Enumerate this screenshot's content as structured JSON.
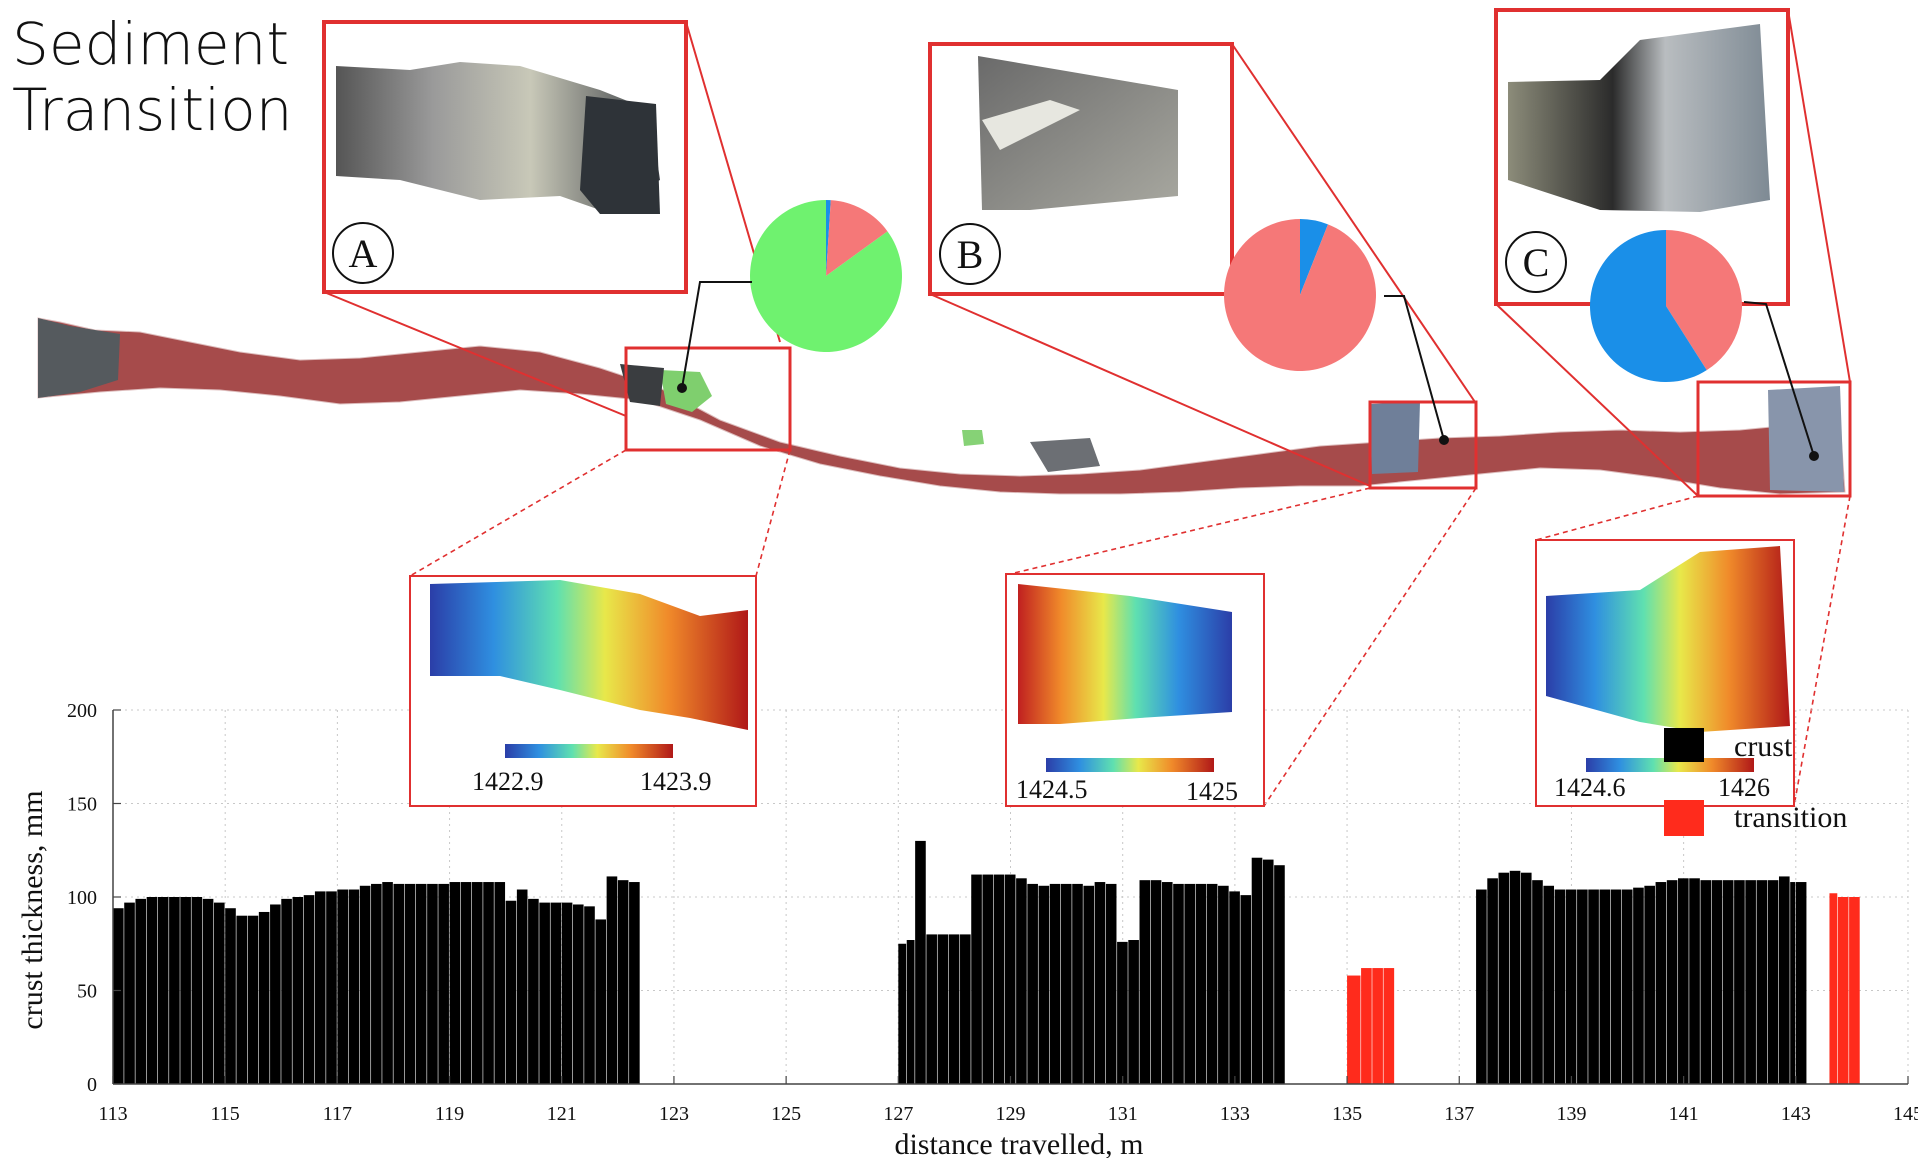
{
  "header": {
    "title_line1": "Sediment",
    "title_line2": "Transition"
  },
  "colors": {
    "crust": "#000000",
    "transition": "#ff2b1c",
    "callout": "#e03030",
    "pie_green": "#6ff26f",
    "pie_salmon": "#f57878",
    "pie_blue": "#1a8fe8",
    "track": "#a84e4e"
  },
  "insets": [
    {
      "letter": "A",
      "pie": [
        {
          "label": "green",
          "value": 85
        },
        {
          "label": "salmon",
          "value": 14
        },
        {
          "label": "blue",
          "value": 1
        }
      ]
    },
    {
      "letter": "B",
      "pie": [
        {
          "label": "salmon",
          "value": 94
        },
        {
          "label": "blue",
          "value": 6
        }
      ]
    },
    {
      "letter": "C",
      "pie": [
        {
          "label": "salmon",
          "value": 41
        },
        {
          "label": "blue",
          "value": 59
        }
      ]
    }
  ],
  "colorbars": [
    {
      "min_label": "1422.9",
      "max_label": "1423.9"
    },
    {
      "min_label": "1424.5",
      "max_label": "1425"
    },
    {
      "min_label": "1424.6",
      "max_label": "1426"
    }
  ],
  "chart_data": {
    "type": "bar",
    "xlabel": "distance travelled, m",
    "ylabel": "crust thickness, mm",
    "xlim": [
      113,
      145
    ],
    "ylim": [
      0,
      200
    ],
    "xticks": [
      113,
      115,
      117,
      119,
      121,
      123,
      125,
      127,
      129,
      131,
      133,
      135,
      137,
      139,
      141,
      143,
      145
    ],
    "yticks": [
      0,
      50,
      100,
      150,
      200
    ],
    "grid": true,
    "legend_position": "right",
    "series": [
      {
        "name": "crust",
        "points": [
          [
            113.0,
            94
          ],
          [
            113.2,
            97
          ],
          [
            113.4,
            99
          ],
          [
            113.6,
            100
          ],
          [
            113.8,
            100
          ],
          [
            114.0,
            100
          ],
          [
            114.2,
            100
          ],
          [
            114.4,
            100
          ],
          [
            114.6,
            99
          ],
          [
            114.8,
            97
          ],
          [
            115.0,
            94
          ],
          [
            115.2,
            90
          ],
          [
            115.4,
            90
          ],
          [
            115.6,
            92
          ],
          [
            115.8,
            96
          ],
          [
            116.0,
            99
          ],
          [
            116.2,
            100
          ],
          [
            116.4,
            101
          ],
          [
            116.6,
            103
          ],
          [
            116.8,
            103
          ],
          [
            117.0,
            104
          ],
          [
            117.2,
            104
          ],
          [
            117.4,
            106
          ],
          [
            117.6,
            107
          ],
          [
            117.8,
            108
          ],
          [
            118.0,
            107
          ],
          [
            118.2,
            107
          ],
          [
            118.4,
            107
          ],
          [
            118.6,
            107
          ],
          [
            118.8,
            107
          ],
          [
            119.0,
            108
          ],
          [
            119.2,
            108
          ],
          [
            119.4,
            108
          ],
          [
            119.6,
            108
          ],
          [
            119.8,
            108
          ],
          [
            120.0,
            98
          ],
          [
            120.2,
            104
          ],
          [
            120.4,
            99
          ],
          [
            120.6,
            97
          ],
          [
            120.8,
            97
          ],
          [
            121.0,
            97
          ],
          [
            121.2,
            96
          ],
          [
            121.4,
            95
          ],
          [
            121.6,
            88
          ],
          [
            121.8,
            111
          ],
          [
            122.0,
            109
          ],
          [
            122.2,
            108
          ],
          [
            127.0,
            75
          ],
          [
            127.15,
            77
          ],
          [
            127.3,
            130
          ],
          [
            127.5,
            80
          ],
          [
            127.7,
            80
          ],
          [
            127.9,
            80
          ],
          [
            128.1,
            80
          ],
          [
            128.3,
            112
          ],
          [
            128.5,
            112
          ],
          [
            128.7,
            112
          ],
          [
            128.9,
            112
          ],
          [
            129.1,
            110
          ],
          [
            129.3,
            107
          ],
          [
            129.5,
            106
          ],
          [
            129.7,
            107
          ],
          [
            129.9,
            107
          ],
          [
            130.1,
            107
          ],
          [
            130.3,
            106
          ],
          [
            130.5,
            108
          ],
          [
            130.7,
            107
          ],
          [
            130.9,
            76
          ],
          [
            131.1,
            77
          ],
          [
            131.3,
            109
          ],
          [
            131.5,
            109
          ],
          [
            131.7,
            108
          ],
          [
            131.9,
            107
          ],
          [
            132.1,
            107
          ],
          [
            132.3,
            107
          ],
          [
            132.5,
            107
          ],
          [
            132.7,
            106
          ],
          [
            132.9,
            103
          ],
          [
            133.1,
            101
          ],
          [
            133.3,
            121
          ],
          [
            133.5,
            120
          ],
          [
            133.7,
            117
          ],
          [
            137.3,
            104
          ],
          [
            137.5,
            110
          ],
          [
            137.7,
            113
          ],
          [
            137.9,
            114
          ],
          [
            138.1,
            113
          ],
          [
            138.3,
            109
          ],
          [
            138.5,
            106
          ],
          [
            138.7,
            104
          ],
          [
            138.9,
            104
          ],
          [
            139.1,
            104
          ],
          [
            139.3,
            104
          ],
          [
            139.5,
            104
          ],
          [
            139.7,
            104
          ],
          [
            139.9,
            104
          ],
          [
            140.1,
            105
          ],
          [
            140.3,
            106
          ],
          [
            140.5,
            108
          ],
          [
            140.7,
            109
          ],
          [
            140.9,
            110
          ],
          [
            141.1,
            110
          ],
          [
            141.3,
            109
          ],
          [
            141.5,
            109
          ],
          [
            141.7,
            109
          ],
          [
            141.9,
            109
          ],
          [
            142.1,
            109
          ],
          [
            142.3,
            109
          ],
          [
            142.5,
            109
          ],
          [
            142.7,
            111
          ],
          [
            142.9,
            108
          ],
          [
            143.0,
            108
          ]
        ]
      },
      {
        "name": "transition",
        "points": [
          [
            135.0,
            58
          ],
          [
            135.25,
            62
          ],
          [
            135.45,
            62
          ],
          [
            135.65,
            62
          ],
          [
            143.6,
            102
          ],
          [
            143.75,
            100
          ],
          [
            143.95,
            100
          ]
        ]
      }
    ]
  }
}
